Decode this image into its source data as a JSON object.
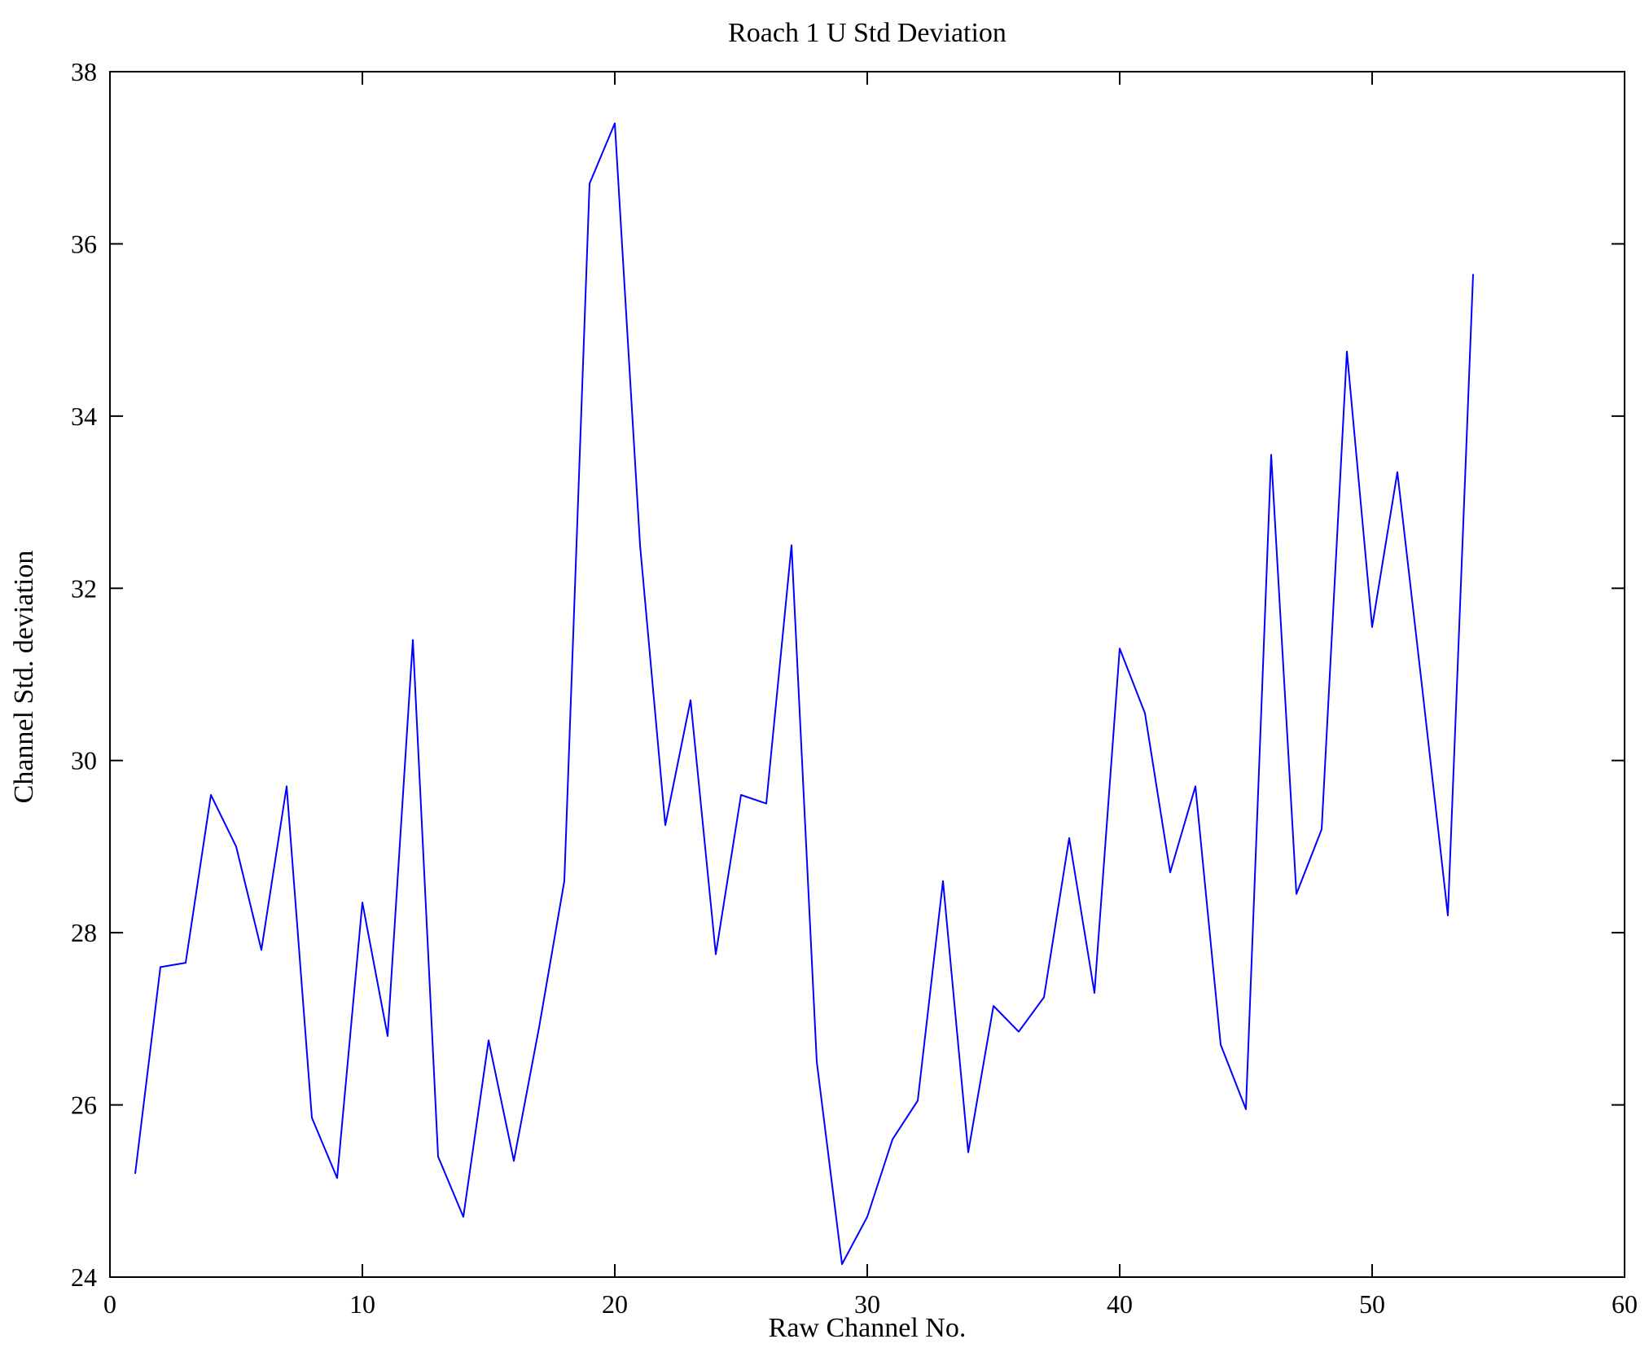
{
  "figure": {
    "title": "Roach 1 U Std Deviation",
    "xlabel": "Raw Channel No.",
    "ylabel": "Channel Std. deviation"
  },
  "chart_data": {
    "type": "line",
    "title": "Roach 1 U Std Deviation",
    "xlabel": "Raw Channel No.",
    "ylabel": "Channel Std. deviation",
    "xlim": [
      0,
      60
    ],
    "ylim": [
      24,
      38
    ],
    "x_ticks": [
      0,
      10,
      20,
      30,
      40,
      50,
      60
    ],
    "y_ticks": [
      24,
      26,
      28,
      30,
      32,
      34,
      36,
      38
    ],
    "grid": false,
    "legend": "none",
    "line_color": "#0000ff",
    "axis_color": "#000000",
    "x": [
      1,
      2,
      3,
      4,
      5,
      6,
      7,
      8,
      9,
      10,
      11,
      12,
      13,
      14,
      15,
      16,
      17,
      18,
      19,
      20,
      21,
      22,
      23,
      24,
      25,
      26,
      27,
      28,
      29,
      30,
      31,
      32,
      33,
      34,
      35,
      36,
      37,
      38,
      39,
      40,
      41,
      42,
      43,
      44,
      45,
      46,
      47,
      48,
      49,
      50,
      51,
      52,
      53,
      54
    ],
    "y": [
      25.2,
      27.6,
      27.65,
      29.6,
      29.0,
      27.8,
      29.7,
      25.85,
      25.15,
      28.35,
      26.8,
      31.4,
      25.4,
      24.7,
      26.75,
      25.35,
      26.9,
      28.6,
      36.7,
      37.4,
      32.5,
      29.25,
      30.7,
      27.75,
      29.6,
      29.5,
      32.5,
      26.5,
      24.15,
      24.7,
      25.6,
      26.05,
      28.6,
      25.45,
      27.15,
      26.85,
      27.25,
      29.1,
      27.3,
      31.3,
      30.55,
      28.7,
      29.7,
      26.7,
      25.95,
      33.55,
      28.45,
      29.2,
      34.75,
      31.55,
      33.35,
      30.8,
      28.2,
      35.65
    ]
  }
}
